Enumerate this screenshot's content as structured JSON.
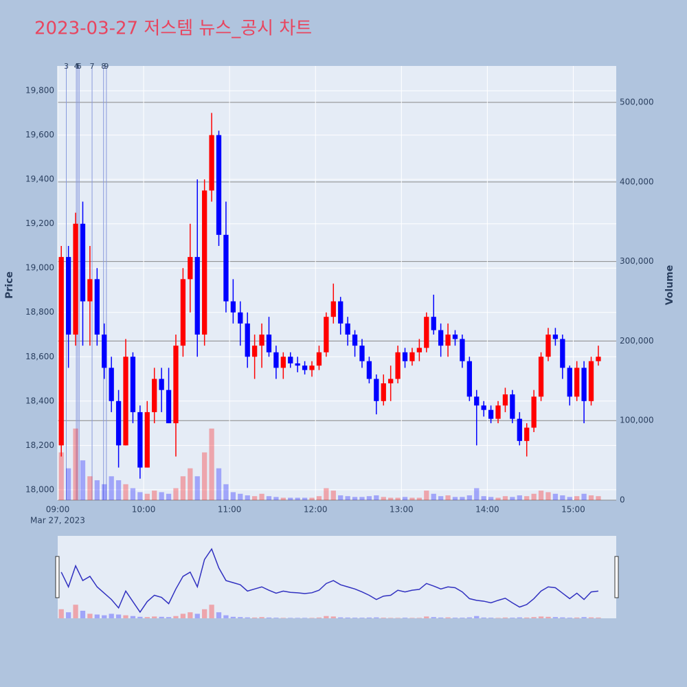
{
  "chart_data": {
    "type": "candlestick",
    "title": "2023-03-27 저스템 뉴스_공시 차트",
    "y_label": "Price",
    "y2_label": "Volume",
    "x": [
      "09:00",
      "09:05",
      "09:10",
      "09:15",
      "09:20",
      "09:25",
      "09:30",
      "09:35",
      "09:40",
      "09:45",
      "09:50",
      "09:55",
      "10:00",
      "10:05",
      "10:10",
      "10:15",
      "10:20",
      "10:25",
      "10:30",
      "10:35",
      "10:40",
      "10:45",
      "10:50",
      "10:55",
      "11:00",
      "11:05",
      "11:10",
      "11:15",
      "11:20",
      "11:25",
      "11:30",
      "11:35",
      "11:40",
      "11:45",
      "11:50",
      "11:55",
      "12:00",
      "12:05",
      "12:10",
      "12:15",
      "12:20",
      "12:25",
      "12:30",
      "12:35",
      "12:40",
      "12:45",
      "12:50",
      "12:55",
      "13:00",
      "13:05",
      "13:10",
      "13:15",
      "13:20",
      "13:25",
      "13:30",
      "13:35",
      "13:40",
      "13:45",
      "13:50",
      "13:55",
      "14:00",
      "14:05",
      "14:10",
      "14:15",
      "14:20",
      "14:25",
      "14:30",
      "14:35",
      "14:40",
      "14:45",
      "14:50",
      "14:55",
      "15:00",
      "15:05",
      "15:10",
      "15:15"
    ],
    "open": [
      18200,
      19050,
      18700,
      19200,
      18850,
      18950,
      18700,
      18550,
      18400,
      18200,
      18600,
      18350,
      18100,
      18350,
      18500,
      18450,
      18300,
      18650,
      18950,
      19050,
      18700,
      19350,
      19600,
      19150,
      18850,
      18800,
      18750,
      18600,
      18650,
      18700,
      18620,
      18550,
      18600,
      18570,
      18560,
      18540,
      18560,
      18620,
      18780,
      18850,
      18750,
      18700,
      18650,
      18580,
      18500,
      18400,
      18480,
      18500,
      18620,
      18580,
      18620,
      18640,
      18780,
      18720,
      18650,
      18700,
      18680,
      18580,
      18420,
      18380,
      18360,
      18320,
      18380,
      18430,
      18320,
      18220,
      18280,
      18420,
      18600,
      18700,
      18680,
      18550,
      18420,
      18550,
      18400,
      18580
    ],
    "high": [
      19100,
      19100,
      19250,
      19300,
      19100,
      19000,
      18750,
      18600,
      18450,
      18680,
      18620,
      18380,
      18400,
      18550,
      18550,
      18550,
      18700,
      19000,
      19200,
      19400,
      19400,
      19700,
      19620,
      19300,
      18950,
      18850,
      18800,
      18700,
      18750,
      18780,
      18650,
      18620,
      18620,
      18600,
      18580,
      18580,
      18650,
      18800,
      18930,
      18870,
      18780,
      18720,
      18680,
      18600,
      18520,
      18520,
      18560,
      18650,
      18640,
      18640,
      18680,
      18800,
      18880,
      18750,
      18750,
      18720,
      18700,
      18600,
      18450,
      18400,
      18380,
      18400,
      18460,
      18450,
      18350,
      18300,
      18450,
      18620,
      18730,
      18730,
      18700,
      18560,
      18580,
      18580,
      18600,
      18650
    ],
    "low": [
      18150,
      18550,
      18650,
      18650,
      18650,
      18650,
      18500,
      18350,
      18100,
      18200,
      18300,
      18050,
      18100,
      18300,
      18350,
      18300,
      18150,
      18600,
      18800,
      18600,
      18650,
      19300,
      19100,
      18800,
      18750,
      18650,
      18550,
      18500,
      18550,
      18600,
      18500,
      18500,
      18550,
      18530,
      18520,
      18510,
      18540,
      18600,
      18750,
      18700,
      18650,
      18600,
      18550,
      18480,
      18340,
      18380,
      18400,
      18480,
      18550,
      18560,
      18580,
      18620,
      18700,
      18600,
      18600,
      18650,
      18550,
      18400,
      18200,
      18330,
      18300,
      18300,
      18350,
      18300,
      18200,
      18150,
      18260,
      18400,
      18580,
      18650,
      18500,
      18380,
      18400,
      18300,
      18380,
      18560
    ],
    "close": [
      19050,
      18700,
      19200,
      18850,
      18950,
      18700,
      18550,
      18400,
      18200,
      18600,
      18350,
      18100,
      18350,
      18500,
      18450,
      18300,
      18650,
      18950,
      19050,
      18700,
      19350,
      19600,
      19150,
      18850,
      18800,
      18750,
      18600,
      18650,
      18700,
      18620,
      18550,
      18600,
      18570,
      18560,
      18540,
      18560,
      18620,
      18780,
      18850,
      18750,
      18700,
      18650,
      18580,
      18500,
      18400,
      18480,
      18500,
      18620,
      18580,
      18620,
      18640,
      18780,
      18720,
      18650,
      18700,
      18680,
      18580,
      18420,
      18380,
      18360,
      18320,
      18380,
      18430,
      18320,
      18220,
      18280,
      18420,
      18600,
      18700,
      18680,
      18550,
      18420,
      18550,
      18400,
      18580,
      18600
    ],
    "volume": [
      60000,
      40000,
      90000,
      50000,
      30000,
      25000,
      20000,
      30000,
      25000,
      20000,
      15000,
      10000,
      8000,
      12000,
      10000,
      8000,
      15000,
      30000,
      40000,
      30000,
      60000,
      90000,
      40000,
      20000,
      10000,
      8000,
      6000,
      5000,
      8000,
      5000,
      4000,
      3000,
      3000,
      3000,
      3000,
      3000,
      5000,
      15000,
      12000,
      6000,
      5000,
      4000,
      4000,
      5000,
      6000,
      4000,
      3000,
      3000,
      4000,
      3000,
      3000,
      12000,
      8000,
      5000,
      6000,
      4000,
      4000,
      6000,
      15000,
      5000,
      4000,
      3000,
      5000,
      4000,
      6000,
      5000,
      8000,
      12000,
      10000,
      8000,
      6000,
      4000,
      5000,
      8000,
      6000,
      5000
    ],
    "increasing_color": "#ff0000",
    "decreasing_color": "#0000ff",
    "xlim": [
      "09:00",
      "15:30"
    ],
    "xticks": [
      "09:00",
      "10:00",
      "11:00",
      "12:00",
      "13:00",
      "14:00",
      "15:00"
    ],
    "x_date_label": "Mar 27, 2023",
    "ylim": [
      17953,
      19912
    ],
    "yticks": [
      {
        "value": 18000,
        "label": "18,000"
      },
      {
        "value": 18200,
        "label": "18,200"
      },
      {
        "value": 18400,
        "label": "18,400"
      },
      {
        "value": 18600,
        "label": "18,600"
      },
      {
        "value": 18800,
        "label": "18,800"
      },
      {
        "value": 19000,
        "label": "19,000"
      },
      {
        "value": 19200,
        "label": "19,200"
      },
      {
        "value": 19400,
        "label": "19,400"
      },
      {
        "value": 19600,
        "label": "19,600"
      },
      {
        "value": 19800,
        "label": "19,800"
      }
    ],
    "y2lim": [
      0,
      545800
    ],
    "y2ticks": [
      0,
      {
        "value": 100000,
        "label": "100,000"
      },
      {
        "value": 200000,
        "label": "200,000"
      },
      {
        "value": 300000,
        "label": "300,000"
      },
      {
        "value": 400000,
        "label": "400,000"
      },
      {
        "value": 500000,
        "label": "500,000"
      }
    ],
    "annotations": [
      {
        "x": "09:06",
        "label": "3"
      },
      {
        "x": "09:13",
        "label": "4"
      },
      {
        "x": "09:14",
        "label": "5"
      },
      {
        "x": "09:15",
        "label": "6"
      },
      {
        "x": "09:24",
        "label": "7"
      },
      {
        "x": "09:32",
        "label": "8"
      },
      {
        "x": "09:34",
        "label": "9"
      }
    ]
  }
}
